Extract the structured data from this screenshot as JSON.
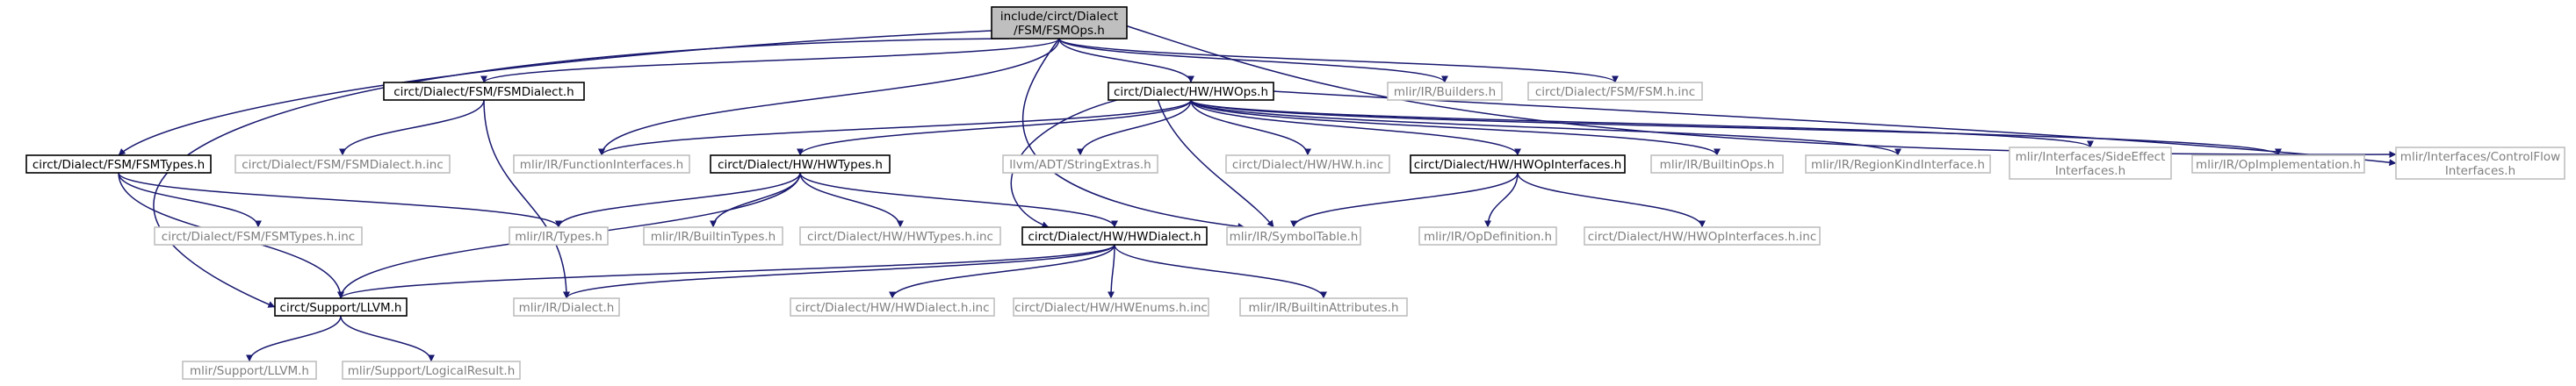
{
  "colors": {
    "root_fill": "#bfbfbf",
    "root_stroke": "#000000",
    "internal_fill": "#ffffff",
    "internal_stroke": "#000000",
    "external_fill": "#ffffff",
    "external_stroke": "#bfbfbf",
    "text_main": "#000000",
    "text_external": "#7f7f7f",
    "edge": "#191970"
  },
  "nodes": [
    {
      "id": "root",
      "kind": "root",
      "lines": [
        "include/circt/Dialect",
        "/FSM/FSMOps.h"
      ]
    },
    {
      "id": "fsm_dialect",
      "kind": "internal",
      "lines": [
        "circt/Dialect/FSM/FSMDialect.h"
      ]
    },
    {
      "id": "hw_ops",
      "kind": "internal",
      "lines": [
        "circt/Dialect/HW/HWOps.h"
      ]
    },
    {
      "id": "builders",
      "kind": "external",
      "lines": [
        "mlir/IR/Builders.h"
      ]
    },
    {
      "id": "fsm_inc",
      "kind": "external",
      "lines": [
        "circt/Dialect/FSM/FSM.h.inc"
      ]
    },
    {
      "id": "fsm_types",
      "kind": "internal",
      "lines": [
        "circt/Dialect/FSM/FSMTypes.h"
      ]
    },
    {
      "id": "fsm_dialect_inc",
      "kind": "external",
      "lines": [
        "circt/Dialect/FSM/FSMDialect.h.inc"
      ]
    },
    {
      "id": "func_ifaces",
      "kind": "external",
      "lines": [
        "mlir/IR/FunctionInterfaces.h"
      ]
    },
    {
      "id": "hw_types",
      "kind": "internal",
      "lines": [
        "circt/Dialect/HW/HWTypes.h"
      ]
    },
    {
      "id": "string_extras",
      "kind": "external",
      "lines": [
        "llvm/ADT/StringExtras.h"
      ]
    },
    {
      "id": "hw_inc",
      "kind": "external",
      "lines": [
        "circt/Dialect/HW/HW.h.inc"
      ]
    },
    {
      "id": "hw_op_ifaces",
      "kind": "internal",
      "lines": [
        "circt/Dialect/HW/HWOpInterfaces.h"
      ]
    },
    {
      "id": "builtin_ops",
      "kind": "external",
      "lines": [
        "mlir/IR/BuiltinOps.h"
      ]
    },
    {
      "id": "region_kind",
      "kind": "external",
      "lines": [
        "mlir/IR/RegionKindInterface.h"
      ]
    },
    {
      "id": "side_effect",
      "kind": "external",
      "lines": [
        "mlir/Interfaces/SideEffect",
        "Interfaces.h"
      ]
    },
    {
      "id": "op_impl",
      "kind": "external",
      "lines": [
        "mlir/IR/OpImplementation.h"
      ]
    },
    {
      "id": "control_flow",
      "kind": "external",
      "lines": [
        "mlir/Interfaces/ControlFlow",
        "Interfaces.h"
      ]
    },
    {
      "id": "fsm_types_inc",
      "kind": "external",
      "lines": [
        "circt/Dialect/FSM/FSMTypes.h.inc"
      ]
    },
    {
      "id": "ir_types",
      "kind": "external",
      "lines": [
        "mlir/IR/Types.h"
      ]
    },
    {
      "id": "builtin_types",
      "kind": "external",
      "lines": [
        "mlir/IR/BuiltinTypes.h"
      ]
    },
    {
      "id": "hw_types_inc",
      "kind": "external",
      "lines": [
        "circt/Dialect/HW/HWTypes.h.inc"
      ]
    },
    {
      "id": "hw_dialect",
      "kind": "internal",
      "lines": [
        "circt/Dialect/HW/HWDialect.h"
      ]
    },
    {
      "id": "symbol_table",
      "kind": "external",
      "lines": [
        "mlir/IR/SymbolTable.h"
      ]
    },
    {
      "id": "op_definition",
      "kind": "external",
      "lines": [
        "mlir/IR/OpDefinition.h"
      ]
    },
    {
      "id": "hw_op_ifaces_inc",
      "kind": "external",
      "lines": [
        "circt/Dialect/HW/HWOpInterfaces.h.inc"
      ]
    },
    {
      "id": "support_llvm",
      "kind": "internal",
      "lines": [
        "circt/Support/LLVM.h"
      ]
    },
    {
      "id": "ir_dialect",
      "kind": "external",
      "lines": [
        "mlir/IR/Dialect.h"
      ]
    },
    {
      "id": "hw_dialect_inc",
      "kind": "external",
      "lines": [
        "circt/Dialect/HW/HWDialect.h.inc"
      ]
    },
    {
      "id": "hw_enums_inc",
      "kind": "external",
      "lines": [
        "circt/Dialect/HW/HWEnums.h.inc"
      ]
    },
    {
      "id": "builtin_attrs",
      "kind": "external",
      "lines": [
        "mlir/IR/BuiltinAttributes.h"
      ]
    },
    {
      "id": "mlir_support_llvm",
      "kind": "external",
      "lines": [
        "mlir/Support/LLVM.h"
      ]
    },
    {
      "id": "logical_result",
      "kind": "external",
      "lines": [
        "mlir/Support/LogicalResult.h"
      ]
    }
  ],
  "edges": [
    [
      "root",
      "fsm_dialect"
    ],
    [
      "root",
      "hw_ops"
    ],
    [
      "root",
      "builders"
    ],
    [
      "root",
      "fsm_inc"
    ],
    [
      "root",
      "fsm_types"
    ],
    [
      "root",
      "func_ifaces"
    ],
    [
      "root",
      "support_llvm"
    ],
    [
      "root",
      "symbol_table"
    ],
    [
      "root",
      "control_flow"
    ],
    [
      "fsm_dialect",
      "fsm_dialect_inc"
    ],
    [
      "fsm_dialect",
      "ir_dialect"
    ],
    [
      "hw_ops",
      "func_ifaces"
    ],
    [
      "hw_ops",
      "hw_types"
    ],
    [
      "hw_ops",
      "string_extras"
    ],
    [
      "hw_ops",
      "hw_inc"
    ],
    [
      "hw_ops",
      "hw_op_ifaces"
    ],
    [
      "hw_ops",
      "builtin_ops"
    ],
    [
      "hw_ops",
      "region_kind"
    ],
    [
      "hw_ops",
      "side_effect"
    ],
    [
      "hw_ops",
      "op_impl"
    ],
    [
      "hw_ops",
      "control_flow"
    ],
    [
      "hw_ops",
      "hw_dialect"
    ],
    [
      "hw_ops",
      "symbol_table"
    ],
    [
      "fsm_types",
      "fsm_types_inc"
    ],
    [
      "fsm_types",
      "ir_types"
    ],
    [
      "fsm_types",
      "support_llvm"
    ],
    [
      "hw_types",
      "ir_types"
    ],
    [
      "hw_types",
      "builtin_types"
    ],
    [
      "hw_types",
      "hw_types_inc"
    ],
    [
      "hw_types",
      "hw_dialect"
    ],
    [
      "hw_types",
      "support_llvm"
    ],
    [
      "hw_op_ifaces",
      "symbol_table"
    ],
    [
      "hw_op_ifaces",
      "op_definition"
    ],
    [
      "hw_op_ifaces",
      "hw_op_ifaces_inc"
    ],
    [
      "hw_dialect",
      "support_llvm"
    ],
    [
      "hw_dialect",
      "ir_dialect"
    ],
    [
      "hw_dialect",
      "hw_dialect_inc"
    ],
    [
      "hw_dialect",
      "hw_enums_inc"
    ],
    [
      "hw_dialect",
      "builtin_attrs"
    ],
    [
      "support_llvm",
      "mlir_support_llvm"
    ],
    [
      "support_llvm",
      "logical_result"
    ]
  ]
}
